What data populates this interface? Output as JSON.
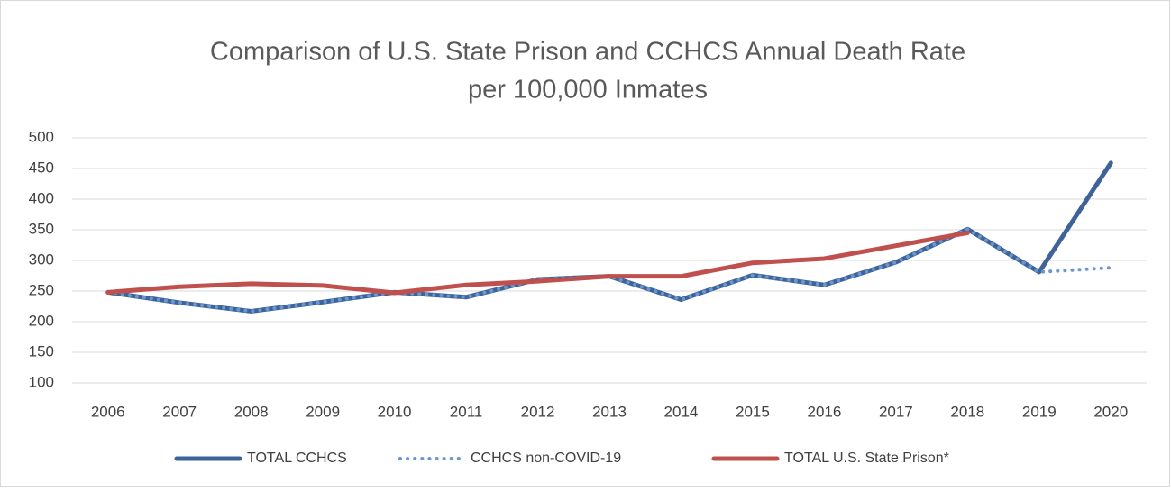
{
  "chart_data": {
    "type": "line",
    "title": [
      "Comparison of U.S. State Prison and CCHCS Annual Death Rate",
      "per 100,000 Inmates"
    ],
    "categories": [
      "2006",
      "2007",
      "2008",
      "2009",
      "2010",
      "2011",
      "2012",
      "2013",
      "2014",
      "2015",
      "2016",
      "2017",
      "2018",
      "2019",
      "2020"
    ],
    "series": [
      {
        "name": "TOTAL CCHCS",
        "color": "#3d6399",
        "dash": "solid",
        "values": [
          248,
          231,
          217,
          232,
          248,
          240,
          269,
          274,
          236,
          276,
          260,
          297,
          351,
          281,
          459
        ]
      },
      {
        "name": "CCHCS non-COVID-19",
        "color": "#6b97cf",
        "dash": "dotted",
        "values": [
          248,
          231,
          217,
          232,
          248,
          240,
          269,
          274,
          236,
          276,
          260,
          297,
          351,
          281,
          288
        ]
      },
      {
        "name": "TOTAL U.S. State Prison*",
        "color": "#c0504d",
        "dash": "solid",
        "values": [
          248,
          257,
          262,
          259,
          247,
          260,
          266,
          274,
          274,
          296,
          303,
          324,
          345,
          null,
          null
        ]
      }
    ],
    "ylim": [
      100,
      500
    ],
    "yticks": [
      100,
      150,
      200,
      250,
      300,
      350,
      400,
      450,
      500
    ],
    "grid": true,
    "legend": "bottom"
  }
}
